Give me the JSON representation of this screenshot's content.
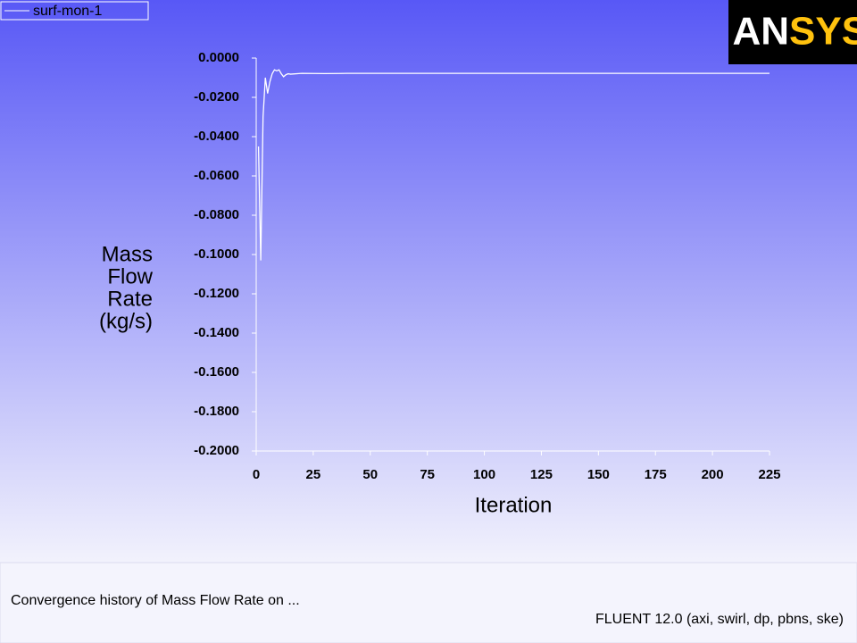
{
  "chart_data": {
    "type": "line",
    "x": [
      1,
      2,
      3,
      4,
      5,
      6,
      7,
      8,
      9,
      10,
      11,
      12,
      13,
      14,
      15,
      20,
      30,
      40,
      50,
      100,
      150,
      200,
      225
    ],
    "series": [
      {
        "name": "surf-mon-1",
        "color": "#ffffff",
        "values": [
          -0.045,
          -0.103,
          -0.03,
          -0.01,
          -0.018,
          -0.012,
          -0.008,
          -0.006,
          -0.0065,
          -0.006,
          -0.008,
          -0.0095,
          -0.0085,
          -0.008,
          -0.0082,
          -0.0078,
          -0.0079,
          -0.0078,
          -0.0078,
          -0.0078,
          -0.0078,
          -0.0078,
          -0.0078
        ]
      }
    ],
    "xlabel": "Iteration",
    "ylabel": [
      "Mass",
      "Flow",
      "Rate",
      "(kg/s)"
    ],
    "xlim": [
      0,
      225
    ],
    "xticks": [
      0,
      25,
      50,
      75,
      100,
      125,
      150,
      175,
      200,
      225
    ],
    "ylim": [
      -0.2,
      0
    ],
    "yticks": [
      {
        "value": 0,
        "label": "0.0000"
      },
      {
        "value": -0.02,
        "label": "-0.0200"
      },
      {
        "value": -0.04,
        "label": "-0.0400"
      },
      {
        "value": -0.06,
        "label": "-0.0600"
      },
      {
        "value": -0.08,
        "label": "-0.0800"
      },
      {
        "value": -0.1,
        "label": "-0.1000"
      },
      {
        "value": -0.12,
        "label": "-0.1200"
      },
      {
        "value": -0.14,
        "label": "-0.1400"
      },
      {
        "value": -0.16,
        "label": "-0.1600"
      },
      {
        "value": -0.18,
        "label": "-0.1800"
      },
      {
        "value": -0.2,
        "label": "-0.2000"
      }
    ],
    "logo": [
      "AN",
      "SYS"
    ],
    "caption": "Convergence history of Mass Flow Rate on ...",
    "solver_info": "FLUENT 12.0 (axi, swirl, dp, pbns, ske)"
  }
}
